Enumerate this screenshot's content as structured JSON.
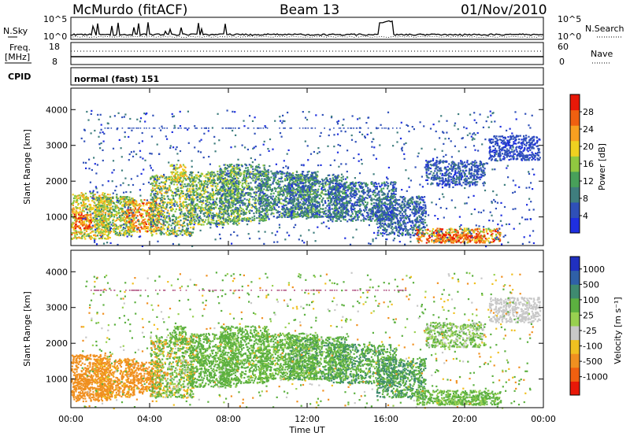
{
  "header": {
    "station": "McMurdo (fitACF)",
    "beam": "Beam 13",
    "date": "01/Nov/2010"
  },
  "top_panels": {
    "nsky_label": "N.Sky",
    "nsky_ticks": [
      "10^5",
      "10^0"
    ],
    "nsearch_label": "N.Search",
    "nsearch_ticks": [
      "10^5",
      "10^0"
    ],
    "freq_label_1": "Freq.",
    "freq_label_2": "[MHz]",
    "freq_ticks": [
      "18",
      "8"
    ],
    "nave_label": "Nave",
    "nave_ticks": [
      "60",
      "0"
    ],
    "cpid_label": "CPID",
    "cpid_value": "normal (fast) 151"
  },
  "chart_data": [
    {
      "type": "heatmap",
      "name": "power",
      "ylabel": "Slant Range [km]",
      "xlabel": "Time UT",
      "ylim": [
        200,
        4600
      ],
      "yticks": [
        "1000",
        "2000",
        "3000",
        "4000"
      ],
      "xticks": [
        "00:00",
        "04:00",
        "08:00",
        "12:00",
        "16:00",
        "20:00",
        "00:00"
      ],
      "xlim_hours": [
        0,
        24
      ],
      "colorbar": {
        "label": "Power [dB]",
        "ticks": [
          "4",
          "8",
          "12",
          "16",
          "20",
          "24",
          "28"
        ],
        "colors": [
          "#1f2fe0",
          "#2f50b8",
          "#3f7e7e",
          "#48a05a",
          "#90c840",
          "#f0d020",
          "#f8a020",
          "#f06010",
          "#e81808"
        ]
      }
    },
    {
      "type": "heatmap",
      "name": "velocity",
      "ylabel": "Slant Range [km]",
      "xlabel": "Time UT",
      "ylim": [
        200,
        4600
      ],
      "yticks": [
        "1000",
        "2000",
        "3000",
        "4000"
      ],
      "xticks": [
        "00:00",
        "04:00",
        "08:00",
        "12:00",
        "16:00",
        "20:00",
        "00:00"
      ],
      "xlim_hours": [
        0,
        24
      ],
      "colorbar": {
        "label": "Velocity [m s⁻¹]",
        "ticks": [
          "1000",
          "500",
          "100",
          "25",
          "-25",
          "-100",
          "-500",
          "-1000"
        ],
        "colors": [
          "#2030c0",
          "#2f60a8",
          "#3f8a70",
          "#5cb040",
          "#98d050",
          "#c8c8c8",
          "#f0c020",
          "#f09020",
          "#f06010",
          "#e81808"
        ]
      }
    }
  ],
  "scatter_blobs": [
    {
      "t0": 0.0,
      "t1": 2.0,
      "r0": 400,
      "r1": 1700,
      "pw": [
        14,
        24
      ],
      "vel": [
        -400,
        -100
      ]
    },
    {
      "t0": 0.1,
      "t1": 1.0,
      "r0": 700,
      "r1": 1100,
      "pw": [
        22,
        30
      ],
      "vel": [
        -500,
        -200
      ]
    },
    {
      "t0": 1.2,
      "t1": 3.2,
      "r0": 500,
      "r1": 1600,
      "pw": [
        10,
        22
      ],
      "vel": [
        -300,
        -50
      ]
    },
    {
      "t0": 2.8,
      "t1": 4.5,
      "r0": 600,
      "r1": 1500,
      "pw": [
        16,
        28
      ],
      "vel": [
        -400,
        -100
      ]
    },
    {
      "t0": 4.0,
      "t1": 6.2,
      "r0": 500,
      "r1": 2200,
      "pw": [
        8,
        22
      ],
      "vel": [
        -150,
        300
      ]
    },
    {
      "t0": 5.0,
      "t1": 5.8,
      "r0": 2000,
      "r1": 2500,
      "pw": [
        14,
        22
      ],
      "vel": [
        50,
        300
      ]
    },
    {
      "t0": 6.0,
      "t1": 8.5,
      "r0": 800,
      "r1": 2300,
      "pw": [
        8,
        20
      ],
      "vel": [
        50,
        400
      ]
    },
    {
      "t0": 7.5,
      "t1": 10.0,
      "r0": 900,
      "r1": 2500,
      "pw": [
        6,
        18
      ],
      "vel": [
        50,
        500
      ]
    },
    {
      "t0": 9.5,
      "t1": 12.5,
      "r0": 1000,
      "r1": 2300,
      "pw": [
        6,
        16
      ],
      "vel": [
        30,
        400
      ]
    },
    {
      "t0": 11.0,
      "t1": 14.0,
      "r0": 1000,
      "r1": 2200,
      "pw": [
        4,
        16
      ],
      "vel": [
        0,
        600
      ]
    },
    {
      "t0": 13.0,
      "t1": 16.5,
      "r0": 900,
      "r1": 2000,
      "pw": [
        4,
        14
      ],
      "vel": [
        50,
        700
      ]
    },
    {
      "t0": 15.5,
      "t1": 18.0,
      "r0": 500,
      "r1": 1600,
      "pw": [
        4,
        12
      ],
      "vel": [
        100,
        900
      ]
    },
    {
      "t0": 17.5,
      "t1": 21.8,
      "r0": 300,
      "r1": 700,
      "pw": [
        14,
        30
      ],
      "vel": [
        25,
        300
      ]
    },
    {
      "t0": 18.5,
      "t1": 21.0,
      "r0": 300,
      "r1": 550,
      "pw": [
        22,
        30
      ],
      "vel": [
        30,
        200
      ]
    },
    {
      "t0": 18.0,
      "t1": 21.0,
      "r0": 1900,
      "r1": 2600,
      "pw": [
        4,
        10
      ],
      "vel": [
        -30,
        200
      ]
    },
    {
      "t0": 21.2,
      "t1": 23.8,
      "r0": 2600,
      "r1": 3300,
      "pw": [
        4,
        8
      ],
      "vel": [
        -25,
        25
      ]
    },
    {
      "t0": 0.5,
      "t1": 23.5,
      "r0": 200,
      "r1": 4000,
      "pw": [
        4,
        10
      ],
      "vel": [
        -200,
        400
      ]
    }
  ]
}
